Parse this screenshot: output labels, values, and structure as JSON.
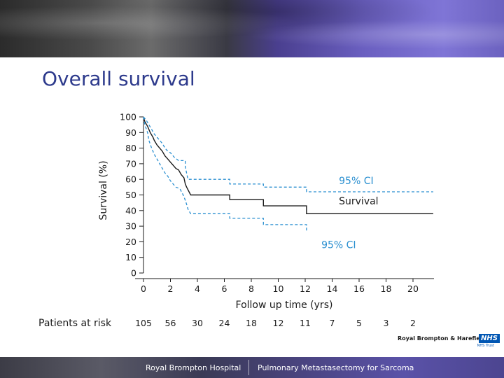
{
  "slide": {
    "title": "Overall survival",
    "footer_left": "Royal Brompton Hospital",
    "footer_right": "Pulmonary Metastasectomy for Sarcoma",
    "logo_text": "Royal Brompton & Harefield",
    "logo_badge": "NHS",
    "logo_sub": "NHS Trust"
  },
  "colors": {
    "title": "#2d3a8c",
    "survival": "#1a1a1a",
    "ci": "#2a8fd0"
  },
  "chart_data": {
    "type": "line",
    "title": "Overall survival",
    "xlabel": "Follow up time (yrs)",
    "ylabel": "Survival (%)",
    "xlim": [
      0,
      21.5
    ],
    "ylim": [
      0,
      100
    ],
    "xticks": [
      0,
      2,
      4,
      6,
      8,
      10,
      12,
      14,
      16,
      18,
      20
    ],
    "yticks": [
      0,
      10,
      20,
      30,
      40,
      50,
      60,
      70,
      80,
      90,
      100
    ],
    "series": [
      {
        "name": "Survival",
        "style": "solid",
        "points": [
          [
            0,
            100
          ],
          [
            0.1,
            97
          ],
          [
            0.3,
            94
          ],
          [
            0.5,
            90
          ],
          [
            0.7,
            87
          ],
          [
            0.8,
            85
          ],
          [
            1.0,
            82
          ],
          [
            1.2,
            80
          ],
          [
            1.4,
            78
          ],
          [
            1.6,
            75
          ],
          [
            1.8,
            73
          ],
          [
            2.0,
            71
          ],
          [
            2.2,
            69
          ],
          [
            2.4,
            67
          ],
          [
            2.6,
            66
          ],
          [
            2.8,
            63
          ],
          [
            3.0,
            61
          ],
          [
            3.1,
            57
          ],
          [
            3.2,
            55
          ],
          [
            3.5,
            50
          ],
          [
            4.0,
            50
          ],
          [
            6.4,
            50
          ],
          [
            6.4,
            47
          ],
          [
            8.9,
            47
          ],
          [
            8.9,
            43
          ],
          [
            12.1,
            43
          ],
          [
            12.1,
            38
          ],
          [
            21.5,
            38
          ]
        ]
      },
      {
        "name": "95% CI upper",
        "style": "dashed",
        "points": [
          [
            0,
            100
          ],
          [
            0.2,
            98
          ],
          [
            0.4,
            95
          ],
          [
            0.6,
            92
          ],
          [
            0.8,
            89
          ],
          [
            1.0,
            87
          ],
          [
            1.2,
            85
          ],
          [
            1.4,
            83
          ],
          [
            1.6,
            80
          ],
          [
            1.8,
            78
          ],
          [
            2.0,
            77
          ],
          [
            2.3,
            74
          ],
          [
            2.6,
            72
          ],
          [
            3.1,
            72
          ],
          [
            3.1,
            68
          ],
          [
            3.3,
            60
          ],
          [
            6.4,
            60
          ],
          [
            6.4,
            57
          ],
          [
            8.9,
            57
          ],
          [
            8.9,
            55
          ],
          [
            12.1,
            55
          ],
          [
            12.1,
            52
          ],
          [
            21.5,
            52
          ]
        ]
      },
      {
        "name": "95% CI lower",
        "style": "dashed",
        "points": [
          [
            0,
            100
          ],
          [
            0.1,
            95
          ],
          [
            0.3,
            90
          ],
          [
            0.4,
            85
          ],
          [
            0.6,
            80
          ],
          [
            0.8,
            76
          ],
          [
            1.0,
            73
          ],
          [
            1.2,
            70
          ],
          [
            1.4,
            67
          ],
          [
            1.6,
            64
          ],
          [
            1.8,
            62
          ],
          [
            2.0,
            59
          ],
          [
            2.2,
            57
          ],
          [
            2.4,
            55
          ],
          [
            2.7,
            54
          ],
          [
            3.0,
            49
          ],
          [
            3.2,
            44
          ],
          [
            3.3,
            41
          ],
          [
            3.5,
            38
          ],
          [
            6.4,
            38
          ],
          [
            6.4,
            35
          ],
          [
            8.9,
            35
          ],
          [
            8.9,
            31
          ],
          [
            12.1,
            31
          ],
          [
            12.1,
            27
          ]
        ]
      }
    ],
    "annotations": [
      {
        "text": "95% CI",
        "x": 14.5,
        "y": 57,
        "color": "#2a8fd0"
      },
      {
        "text": "Survival",
        "x": 14.5,
        "y": 44,
        "color": "#1a1a1a"
      },
      {
        "text": "95% CI",
        "x": 13.2,
        "y": 16,
        "color": "#2a8fd0"
      }
    ],
    "risk_table": {
      "label": "Patients at risk",
      "times": [
        0,
        2,
        4,
        6,
        8,
        10,
        12,
        14,
        16,
        18,
        20
      ],
      "counts": [
        "105",
        "56",
        "30",
        "24",
        "18",
        "12",
        "11",
        "7",
        "5",
        "3",
        "2"
      ]
    }
  }
}
